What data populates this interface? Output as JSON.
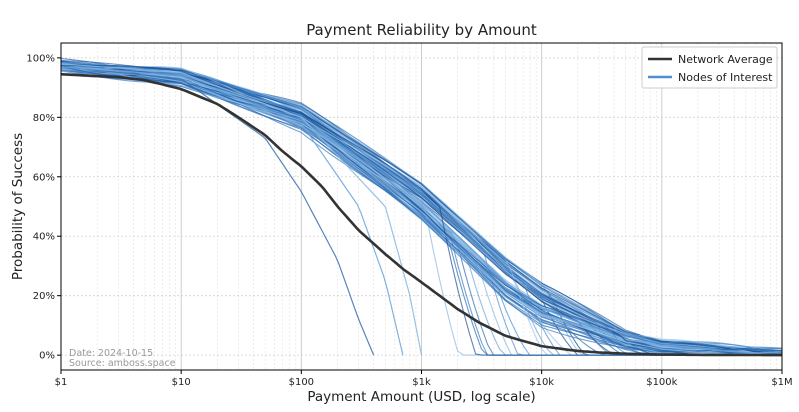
{
  "chart_data": {
    "type": "line",
    "title": "Payment Reliability by Amount",
    "xlabel": "Payment Amount (USD, log scale)",
    "ylabel": "Probability of Success",
    "x_scale": "log",
    "xlim": [
      1,
      1000000
    ],
    "ylim": [
      -0.05,
      1.05
    ],
    "x_ticks": [
      {
        "value": 1,
        "label": "$1"
      },
      {
        "value": 10,
        "label": "$10"
      },
      {
        "value": 100,
        "label": "$100"
      },
      {
        "value": 1000,
        "label": "$1k"
      },
      {
        "value": 10000,
        "label": "$10k"
      },
      {
        "value": 100000,
        "label": "$100k"
      },
      {
        "value": 1000000,
        "label": "$1M"
      }
    ],
    "y_ticks": [
      {
        "value": 0,
        "label": "0%"
      },
      {
        "value": 0.2,
        "label": "20%"
      },
      {
        "value": 0.4,
        "label": "40%"
      },
      {
        "value": 0.6,
        "label": "60%"
      },
      {
        "value": 0.8,
        "label": "80%"
      },
      {
        "value": 1.0,
        "label": "100%"
      }
    ],
    "grid": "on (major and minor)",
    "legend": {
      "placement": "top-right",
      "entries": [
        {
          "label": "Network Average",
          "color": "#333333"
        },
        {
          "label": "Nodes of Interest",
          "color": "#4f8fd0"
        }
      ]
    },
    "annotation": {
      "date": "Date: 2024-10-15",
      "source": "Source: amboss.space"
    },
    "series": [
      {
        "name": "Network Average",
        "color": "#333333",
        "x": [
          1,
          3,
          5,
          10,
          20,
          30,
          50,
          70,
          100,
          150,
          200,
          300,
          500,
          700,
          1000,
          2000,
          3000,
          5000,
          10000,
          20000,
          30000,
          50000,
          100000,
          200000,
          500000,
          1000000
        ],
        "y": [
          0.945,
          0.935,
          0.925,
          0.895,
          0.845,
          0.8,
          0.74,
          0.685,
          0.635,
          0.565,
          0.5,
          0.42,
          0.34,
          0.29,
          0.245,
          0.155,
          0.11,
          0.065,
          0.03,
          0.014,
          0.009,
          0.005,
          0.002,
          0.001,
          0.0005,
          0.0
        ]
      }
    ],
    "node_curves": {
      "color": "#4f8fd0",
      "count_shown": "many (≈80 individual node curves)",
      "typical_band": {
        "x": [
          1,
          10,
          100,
          500,
          1000,
          5000,
          10000,
          50000,
          100000,
          1000000
        ],
        "y_upper": [
          0.985,
          0.96,
          0.84,
          0.66,
          0.58,
          0.33,
          0.24,
          0.08,
          0.045,
          0.01
        ],
        "y_lower": [
          0.96,
          0.91,
          0.76,
          0.55,
          0.45,
          0.18,
          0.1,
          0.025,
          0.01,
          0.0
        ]
      },
      "early_drop_examples": [
        {
          "x": [
            1,
            10,
            50,
            100,
            200,
            300,
            400
          ],
          "y": [
            0.97,
            0.93,
            0.73,
            0.55,
            0.32,
            0.12,
            0.0
          ]
        },
        {
          "x": [
            1,
            10,
            100,
            300,
            500,
            700
          ],
          "y": [
            0.97,
            0.94,
            0.78,
            0.5,
            0.25,
            0.0
          ]
        },
        {
          "x": [
            1,
            10,
            100,
            500,
            800,
            1000
          ],
          "y": [
            0.98,
            0.95,
            0.8,
            0.5,
            0.2,
            0.0
          ]
        }
      ]
    }
  }
}
